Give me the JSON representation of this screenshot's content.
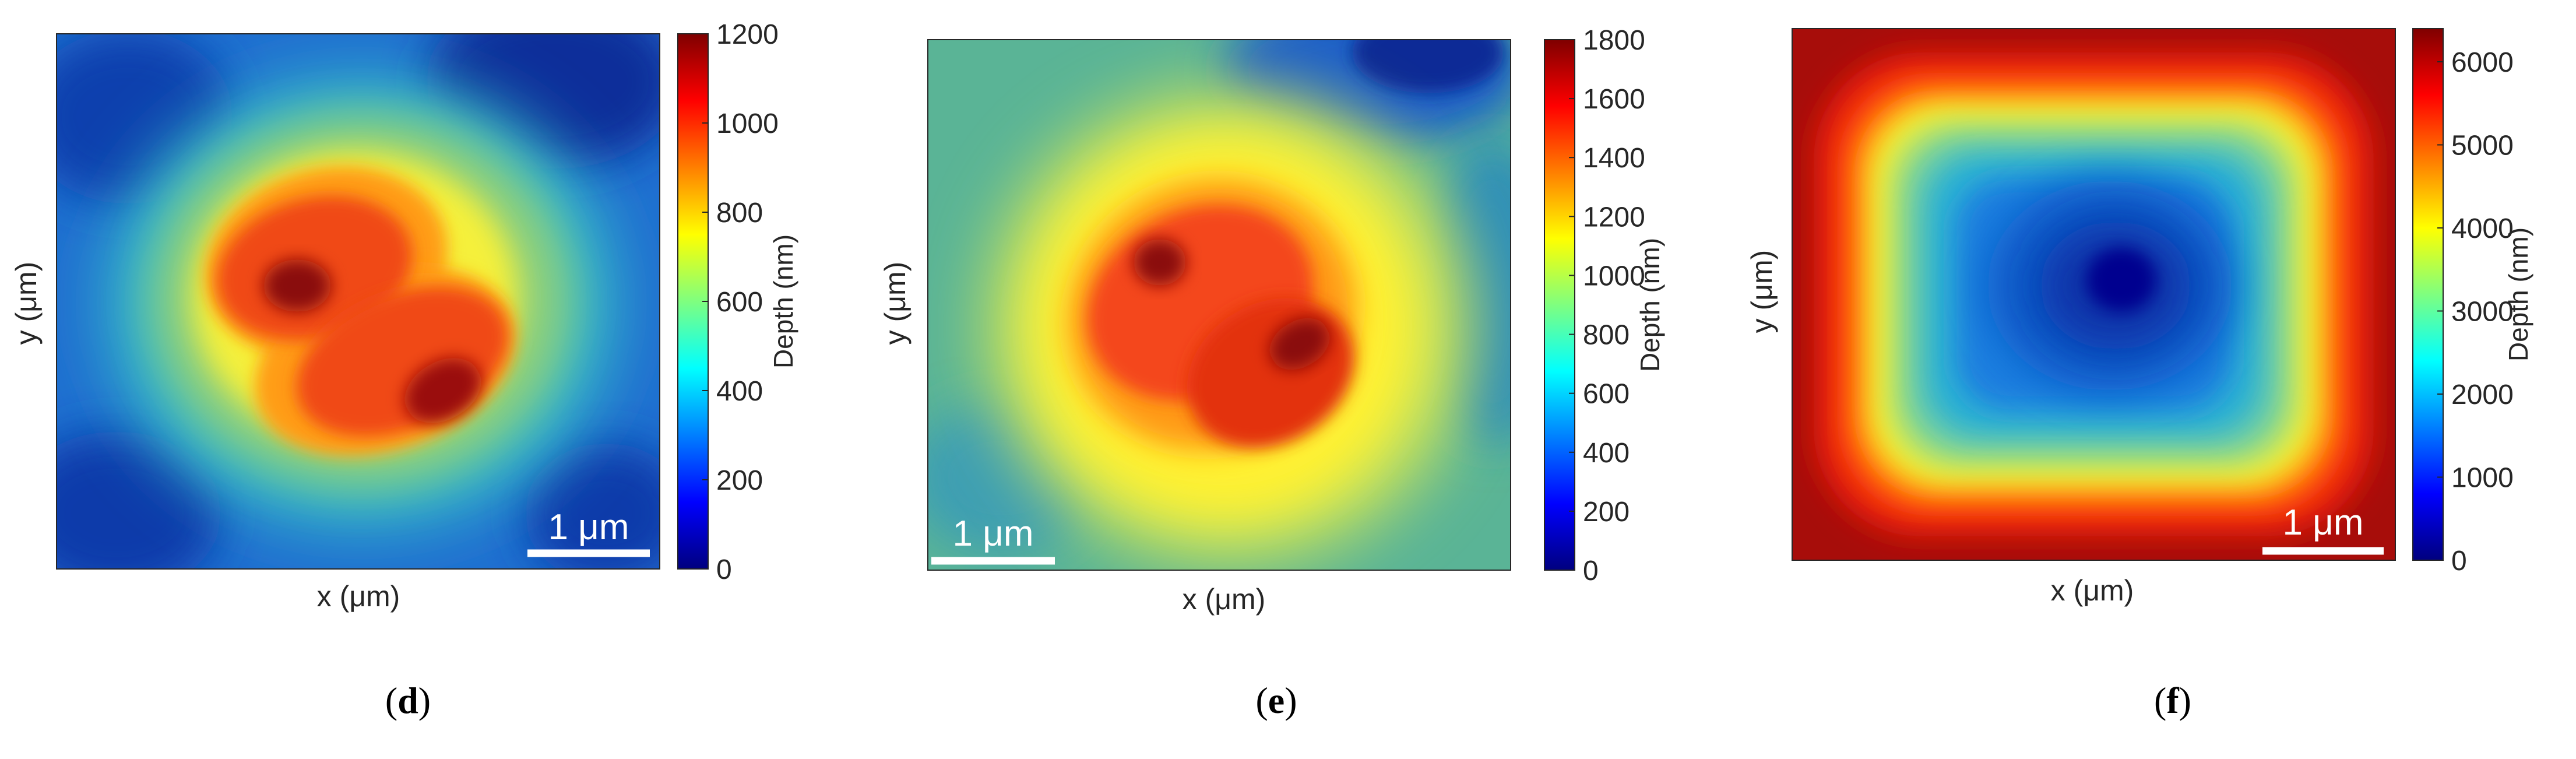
{
  "chart_data": [
    {
      "type": "heatmap",
      "panel": "d",
      "caption": "(d)",
      "xlabel": "x (μm)",
      "ylabel": "y (μm)",
      "colorbar_label": "Depth (nm)",
      "colorbar_ticks": [
        0,
        200,
        400,
        600,
        800,
        1000,
        1200
      ],
      "clim": [
        0,
        1200
      ],
      "scale_bar_label": "1 μm",
      "scale_bar_position": "bottom-right",
      "colormap": "jet"
    },
    {
      "type": "heatmap",
      "panel": "e",
      "caption": "(e)",
      "xlabel": "x (μm)",
      "ylabel": "y (μm)",
      "colorbar_label": "Depth (nm)",
      "colorbar_ticks": [
        0,
        200,
        400,
        600,
        800,
        1000,
        1200,
        1400,
        1600,
        1800
      ],
      "clim": [
        0,
        1800
      ],
      "scale_bar_label": "1 μm",
      "scale_bar_position": "bottom-left",
      "colormap": "jet"
    },
    {
      "type": "heatmap",
      "panel": "f",
      "caption": "(f)",
      "xlabel": "x (μm)",
      "ylabel": "y (μm)",
      "colorbar_label": "Depth (nm)",
      "colorbar_ticks": [
        0,
        1000,
        2000,
        3000,
        4000,
        5000,
        6000
      ],
      "clim": [
        0,
        6400
      ],
      "scale_bar_label": "1 μm",
      "scale_bar_position": "bottom-right",
      "colormap": "jet"
    }
  ],
  "colors": {
    "jet": [
      "#00007f",
      "#0000ff",
      "#007fff",
      "#00ffff",
      "#7fff7f",
      "#ffff00",
      "#ff7f00",
      "#ff0000",
      "#7f0000"
    ],
    "scale_bar": "#ffffff",
    "text": "#262626"
  }
}
